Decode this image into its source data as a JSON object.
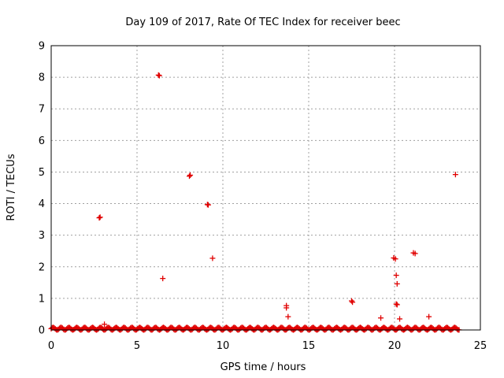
{
  "chart_data": {
    "type": "scatter",
    "title": "Day 109 of 2017, Rate Of TEC Index for receiver beec",
    "xlabel": "GPS time / hours",
    "ylabel": "ROTI / TECUs",
    "xlim": [
      0,
      25
    ],
    "ylim": [
      0,
      9
    ],
    "xticks": [
      "0",
      "5",
      "10",
      "15",
      "20",
      "25"
    ],
    "yticks": [
      "0",
      "1",
      "2",
      "3",
      "4",
      "5",
      "6",
      "7",
      "8",
      "9"
    ],
    "grid": true,
    "marker": "+",
    "color": "#e00000",
    "points": [
      {
        "x": 2.8,
        "y": 3.55
      },
      {
        "x": 2.85,
        "y": 3.57
      },
      {
        "x": 3.1,
        "y": 0.18
      },
      {
        "x": 6.25,
        "y": 8.07
      },
      {
        "x": 6.3,
        "y": 8.05
      },
      {
        "x": 6.5,
        "y": 1.63
      },
      {
        "x": 8.05,
        "y": 4.87
      },
      {
        "x": 8.1,
        "y": 4.9
      },
      {
        "x": 9.1,
        "y": 3.97
      },
      {
        "x": 9.15,
        "y": 3.96
      },
      {
        "x": 9.4,
        "y": 2.27
      },
      {
        "x": 13.7,
        "y": 0.77
      },
      {
        "x": 13.7,
        "y": 0.7
      },
      {
        "x": 13.8,
        "y": 0.42
      },
      {
        "x": 17.5,
        "y": 0.92
      },
      {
        "x": 17.55,
        "y": 0.88
      },
      {
        "x": 19.2,
        "y": 0.38
      },
      {
        "x": 19.95,
        "y": 2.28
      },
      {
        "x": 20.05,
        "y": 2.25
      },
      {
        "x": 20.1,
        "y": 1.73
      },
      {
        "x": 20.15,
        "y": 1.46
      },
      {
        "x": 20.1,
        "y": 0.82
      },
      {
        "x": 20.15,
        "y": 0.8
      },
      {
        "x": 20.3,
        "y": 0.35
      },
      {
        "x": 21.1,
        "y": 2.44
      },
      {
        "x": 21.2,
        "y": 2.42
      },
      {
        "x": 22.0,
        "y": 0.42
      },
      {
        "x": 23.55,
        "y": 4.92
      }
    ],
    "baseline": {
      "x_start": 0,
      "x_end": 23.8,
      "y_max": 0.08
    }
  }
}
